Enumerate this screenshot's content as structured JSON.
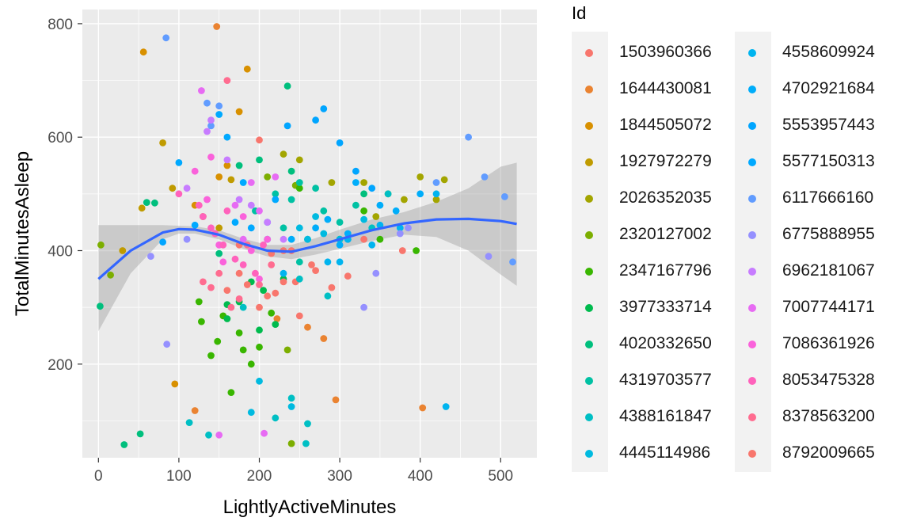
{
  "chart_data": {
    "type": "scatter",
    "xlabel": "LightlyActiveMinutes",
    "ylabel": "TotalMinutesAsleep",
    "xlim": [
      -20,
      545
    ],
    "ylim": [
      35,
      825
    ],
    "x_ticks": [
      0,
      100,
      200,
      300,
      400,
      500
    ],
    "y_ticks": [
      200,
      400,
      600,
      800
    ],
    "grid": true,
    "legend_title": "Id",
    "legend_position": "right",
    "smooth": {
      "method": "loess",
      "color": "#3366FF",
      "x": [
        0,
        40,
        80,
        100,
        120,
        150,
        180,
        210,
        240,
        270,
        300,
        340,
        380,
        420,
        460,
        500,
        520
      ],
      "y": [
        350,
        400,
        432,
        438,
        437,
        428,
        412,
        400,
        398,
        408,
        420,
        436,
        448,
        455,
        456,
        452,
        447
      ],
      "upper": [
        445,
        445,
        445,
        444,
        443,
        436,
        421,
        410,
        410,
        422,
        437,
        455,
        468,
        486,
        510,
        548,
        555
      ],
      "lower": [
        258,
        360,
        420,
        430,
        430,
        420,
        403,
        390,
        385,
        393,
        403,
        417,
        428,
        424,
        400,
        358,
        338
      ]
    },
    "series": [
      {
        "name": "1503960366",
        "color": "#F8766D",
        "x": [
          230,
          265,
          290,
          310,
          330,
          250,
          200,
          175,
          210,
          245,
          270,
          378
        ],
        "y": [
          400,
          375,
          335,
          355,
          420,
          285,
          595,
          410,
          320,
          345,
          365,
          400
        ]
      },
      {
        "name": "1644430081",
        "color": "#EA8331",
        "x": [
          147,
          120,
          295,
          403,
          222,
          280,
          260
        ],
        "y": [
          795,
          118,
          137,
          123,
          280,
          245,
          265
        ]
      },
      {
        "name": "1844505072",
        "color": "#D89000",
        "x": [
          56,
          185,
          175,
          95,
          160,
          120,
          150
        ],
        "y": [
          750,
          720,
          645,
          165,
          550,
          480,
          530
        ]
      },
      {
        "name": "1927972279",
        "color": "#C09B00",
        "x": [
          80,
          30,
          54,
          92,
          130,
          150,
          165
        ],
        "y": [
          590,
          400,
          475,
          510,
          460,
          440,
          525
        ]
      },
      {
        "name": "2026352035",
        "color": "#A3A500",
        "x": [
          230,
          250,
          290,
          330,
          360,
          400,
          420,
          430,
          380,
          345
        ],
        "y": [
          570,
          560,
          520,
          520,
          500,
          530,
          490,
          525,
          490,
          460
        ]
      },
      {
        "name": "2320127002",
        "color": "#7CAE00",
        "x": [
          3,
          15,
          235,
          240,
          210,
          245
        ],
        "y": [
          410,
          357,
          225,
          60,
          530,
          515
        ]
      },
      {
        "name": "2347167796",
        "color": "#39B600",
        "x": [
          125,
          128,
          140,
          148,
          155,
          175,
          165,
          200,
          215,
          190,
          180,
          250,
          300,
          330,
          350,
          395
        ],
        "y": [
          310,
          275,
          215,
          240,
          285,
          255,
          150,
          230,
          290,
          200,
          225,
          510,
          420,
          470,
          420,
          400
        ]
      },
      {
        "name": "3977333714",
        "color": "#00BB4E",
        "x": [
          160,
          200,
          220,
          160,
          175,
          190,
          205,
          230
        ],
        "y": [
          280,
          260,
          270,
          305,
          310,
          345,
          330,
          350
        ]
      },
      {
        "name": "4020332650",
        "color": "#00BF7D",
        "x": [
          2,
          32,
          52,
          60,
          70,
          235,
          330,
          240,
          150,
          175,
          200
        ],
        "y": [
          302,
          58,
          77,
          485,
          484,
          690,
          500,
          540,
          395,
          550,
          560
        ]
      },
      {
        "name": "4319703577",
        "color": "#00C1A3",
        "x": [
          195,
          220,
          240,
          250,
          230,
          260,
          280,
          270,
          300,
          320,
          250
        ],
        "y": [
          470,
          500,
          490,
          520,
          440,
          420,
          470,
          510,
          450,
          480,
          380
        ]
      },
      {
        "name": "4388161847",
        "color": "#00BFC4",
        "x": [
          113,
          137,
          180,
          250,
          258,
          220,
          240,
          260,
          285,
          310,
          340,
          360
        ],
        "y": [
          97,
          75,
          300,
          350,
          60,
          105,
          140,
          95,
          320,
          420,
          440,
          500
        ]
      },
      {
        "name": "4445114986",
        "color": "#00BAE0",
        "x": [
          200,
          190,
          240,
          270,
          300,
          330,
          250,
          260,
          280
        ],
        "y": [
          170,
          115,
          125,
          460,
          420,
          455,
          440,
          420,
          430
        ]
      },
      {
        "name": "4558609924",
        "color": "#00B4EF",
        "x": [
          230,
          285,
          300,
          310,
          340,
          350,
          375,
          420,
          432
        ],
        "y": [
          360,
          380,
          380,
          420,
          410,
          445,
          440,
          500,
          125
        ]
      },
      {
        "name": "4702921684",
        "color": "#00ADFA",
        "x": [
          240,
          270,
          285,
          300,
          310,
          320,
          350,
          370,
          400
        ],
        "y": [
          420,
          440,
          455,
          410,
          430,
          520,
          480,
          470,
          500
        ]
      },
      {
        "name": "5553957443",
        "color": "#00A5FF",
        "x": [
          80,
          210,
          235,
          270,
          280,
          300,
          320,
          340
        ],
        "y": [
          415,
          450,
          620,
          630,
          650,
          590,
          540,
          510
        ]
      },
      {
        "name": "5577150313",
        "color": "#00A9FF",
        "x": [
          100,
          120,
          150,
          160,
          170,
          190,
          210,
          180,
          220
        ],
        "y": [
          555,
          445,
          640,
          600,
          450,
          440,
          420,
          520,
          490
        ]
      },
      {
        "name": "6117666160",
        "color": "#619CFF",
        "x": [
          84,
          135,
          140,
          150,
          460,
          420,
          480,
          505,
          515
        ],
        "y": [
          775,
          660,
          620,
          655,
          600,
          520,
          530,
          495,
          380
        ]
      },
      {
        "name": "6775888955",
        "color": "#9590FF",
        "x": [
          85,
          65,
          110,
          375,
          385,
          485,
          330,
          345
        ],
        "y": [
          235,
          390,
          420,
          430,
          440,
          390,
          300,
          360
        ]
      },
      {
        "name": "6962181067",
        "color": "#C77CFF",
        "x": [
          110,
          135,
          140,
          160,
          175,
          190,
          210,
          230,
          150
        ],
        "y": [
          510,
          610,
          630,
          560,
          490,
          480,
          450,
          420,
          410
        ]
      },
      {
        "name": "7007744171",
        "color": "#E76BF3",
        "x": [
          128,
          150,
          206,
          180,
          170,
          190,
          200,
          220
        ],
        "y": [
          682,
          75,
          78,
          420,
          480,
          520,
          470,
          530
        ]
      },
      {
        "name": "7086361926",
        "color": "#FA62DB",
        "x": [
          120,
          140,
          135,
          150,
          180,
          155,
          200,
          190,
          210
        ],
        "y": [
          540,
          565,
          490,
          410,
          460,
          380,
          350,
          400,
          420
        ]
      },
      {
        "name": "8053475328",
        "color": "#FF62BC",
        "x": [
          100,
          125,
          130,
          140,
          145,
          155,
          160,
          170,
          180,
          195,
          205
        ],
        "y": [
          500,
          480,
          460,
          440,
          430,
          410,
          470,
          385,
          375,
          360,
          410
        ]
      },
      {
        "name": "8378563200",
        "color": "#FF6C90",
        "x": [
          160,
          130,
          140,
          150,
          165,
          185,
          200,
          215,
          175
        ],
        "y": [
          700,
          345,
          335,
          360,
          300,
          410,
          340,
          375,
          315
        ]
      },
      {
        "name": "8792009665",
        "color": "#F8766D",
        "x": [
          160,
          175,
          185,
          200,
          220,
          215,
          230,
          240
        ],
        "y": [
          330,
          360,
          340,
          300,
          325,
          395,
          345,
          400
        ]
      }
    ]
  }
}
